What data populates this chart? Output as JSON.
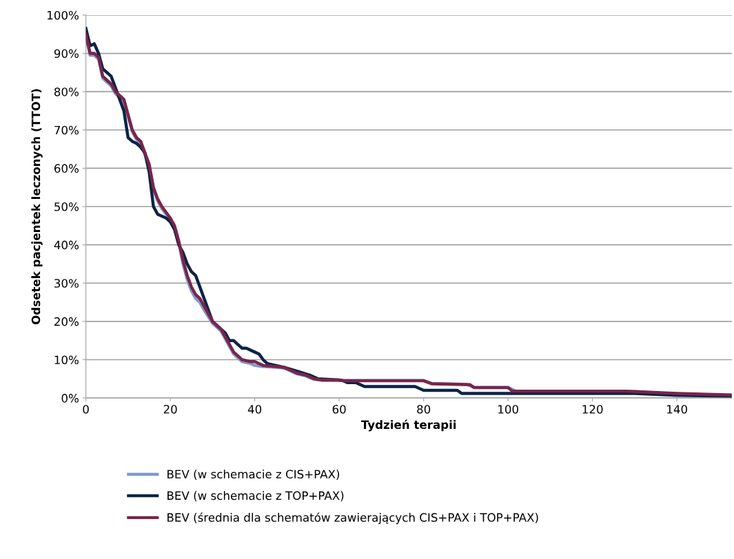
{
  "chart_data": {
    "type": "line",
    "xlabel": "Tydzień terapii",
    "ylabel": "Odsetek pacjentek leczonych (TTOT)",
    "xlim": [
      0,
      153
    ],
    "xticks": [
      0,
      20,
      40,
      60,
      80,
      100,
      120,
      140
    ],
    "ylim": [
      0,
      100
    ],
    "yticks": [
      {
        "value": 0,
        "label": "0%"
      },
      {
        "value": 10,
        "label": "10%"
      },
      {
        "value": 20,
        "label": "20%"
      },
      {
        "value": 30,
        "label": "30%"
      },
      {
        "value": 40,
        "label": "40%"
      },
      {
        "value": 50,
        "label": "50%"
      },
      {
        "value": 60,
        "label": "60%"
      },
      {
        "value": 70,
        "label": "70%"
      },
      {
        "value": 80,
        "label": "80%"
      },
      {
        "value": 90,
        "label": "90%"
      },
      {
        "value": 100,
        "label": "100%"
      }
    ],
    "grid": "y",
    "legend": "bottom",
    "marker": "none",
    "line_style": "solid",
    "series": [
      {
        "name": "BEV (w schemacie z CIS+PAX)",
        "color": "#7f9ad0",
        "x": [
          0,
          1,
          2,
          3,
          4,
          5,
          6,
          7,
          8,
          9,
          10,
          11,
          12,
          13,
          14,
          15,
          16,
          17,
          18,
          20,
          21,
          22,
          23,
          24,
          25,
          26,
          27,
          28,
          30,
          32,
          33,
          34,
          35,
          36,
          37,
          39,
          40,
          42,
          45,
          47,
          50,
          52,
          54,
          56,
          60,
          61,
          80,
          82,
          90,
          92,
          100,
          102,
          130,
          140,
          153
        ],
        "values": [
          94.5,
          89.5,
          89.5,
          88.5,
          83.5,
          82.5,
          81.5,
          79.5,
          78.5,
          77.5,
          73.5,
          69.5,
          67.5,
          66.5,
          63.5,
          60.5,
          54.5,
          51.5,
          49.5,
          46.5,
          44.5,
          40.5,
          35,
          31,
          28,
          26,
          25,
          23,
          19.5,
          17.5,
          15.5,
          13.5,
          11.5,
          10.5,
          9.5,
          9,
          8.5,
          8.2,
          8,
          7.8,
          6.3,
          5.8,
          4.9,
          4.6,
          4.6,
          4.6,
          4.6,
          3.8,
          3.6,
          2.8,
          2.8,
          1.7,
          1.7,
          1,
          0.7
        ]
      },
      {
        "name": "BEV (w schemacie z TOP+PAX)",
        "color": "#0b2346",
        "x": [
          0,
          1,
          2,
          3,
          4,
          5,
          6,
          7,
          8,
          9,
          10,
          11,
          12,
          13,
          14,
          15,
          16,
          17,
          18,
          19,
          20,
          21,
          22,
          23,
          24,
          25,
          26,
          27,
          28,
          29,
          30,
          32,
          33,
          34,
          35,
          36,
          37,
          38,
          40,
          41,
          42,
          43,
          45,
          47,
          50,
          53,
          55,
          60,
          61,
          62,
          64,
          66,
          78,
          80,
          88,
          89,
          130,
          140,
          153
        ],
        "values": [
          96.5,
          92,
          92.5,
          90,
          86,
          85,
          84,
          81,
          78,
          75,
          68,
          67,
          66.5,
          65.5,
          64,
          59,
          50,
          48,
          47.5,
          47,
          46,
          44,
          40,
          38,
          35,
          33,
          32,
          29,
          26,
          23,
          20,
          18,
          17,
          15,
          15,
          14,
          13,
          13,
          12,
          11.5,
          10,
          9,
          8.5,
          8,
          7,
          6,
          5,
          4.7,
          4.5,
          4,
          4,
          3,
          3,
          2,
          2,
          1.2,
          1.2,
          0.7,
          0.5
        ]
      },
      {
        "name": "BEV (średnia dla schematów zawierających CIS+PAX i TOP+PAX)",
        "color": "#7b2449",
        "x": [
          0,
          1,
          2,
          3,
          4,
          5,
          6,
          7,
          8,
          9,
          10,
          11,
          12,
          13,
          14,
          15,
          16,
          17,
          18,
          20,
          21,
          22,
          23,
          24,
          25,
          26,
          27,
          28,
          30,
          32,
          33,
          34,
          35,
          36,
          37,
          39,
          40,
          42,
          45,
          47,
          50,
          52,
          54,
          56,
          60,
          61,
          80,
          82,
          91,
          92,
          100,
          101,
          128,
          140,
          153
        ],
        "values": [
          95,
          90,
          90,
          89,
          84,
          83,
          82,
          80,
          79,
          78,
          74,
          70,
          68,
          67,
          64,
          61,
          55,
          52,
          50,
          47,
          45,
          41,
          36,
          32,
          29,
          27,
          26,
          24,
          20,
          18,
          16,
          14,
          12,
          11,
          10,
          9.5,
          9.5,
          8.5,
          8.2,
          8,
          6.5,
          6,
          5,
          4.7,
          4.7,
          4.5,
          4.5,
          3.7,
          3.5,
          2.7,
          2.7,
          1.8,
          1.8,
          1.2,
          0.8
        ]
      }
    ]
  }
}
